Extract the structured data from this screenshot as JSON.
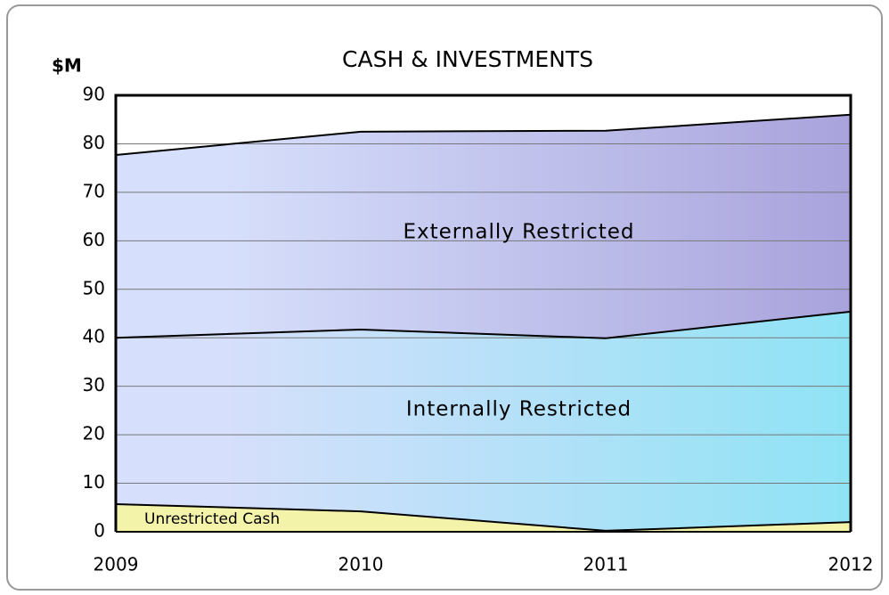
{
  "chart_data": {
    "type": "area",
    "stacked": true,
    "title": "CASH & INVESTMENTS",
    "y_label": "$M",
    "categories": [
      "2009",
      "2010",
      "2011",
      "2012"
    ],
    "series": [
      {
        "name": "Unrestricted Cash",
        "color": "#f3f3a9",
        "values": [
          5.7,
          4.2,
          0.2,
          2.0
        ]
      },
      {
        "name": "Internally Restricted",
        "color": "#8fe3f5",
        "values": [
          34.3,
          37.5,
          39.7,
          43.4
        ]
      },
      {
        "name": "Externally Restricted",
        "color": "#a9a3dc",
        "values": [
          37.7,
          40.8,
          42.8,
          40.6
        ]
      }
    ],
    "ylim": [
      0,
      90
    ],
    "yticks": [
      0,
      10,
      20,
      30,
      40,
      50,
      60,
      70,
      80,
      90
    ],
    "grid": true
  }
}
